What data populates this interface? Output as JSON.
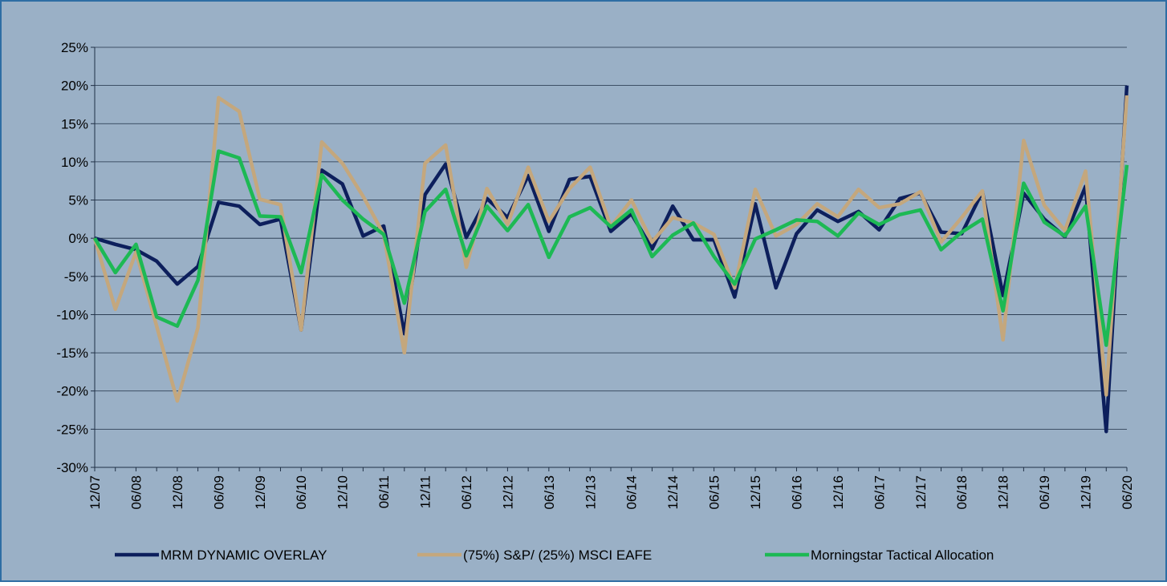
{
  "chart_data": {
    "type": "line",
    "categories": [
      "12/07",
      null,
      "06/08",
      null,
      "12/08",
      null,
      "06/09",
      null,
      "12/09",
      null,
      "06/10",
      null,
      "12/10",
      null,
      "06/11",
      null,
      "12/11",
      null,
      "06/12",
      null,
      "12/12",
      null,
      "06/13",
      null,
      "12/13",
      null,
      "06/14",
      null,
      "12/14",
      null,
      "06/15",
      null,
      "12/15",
      null,
      "06/16",
      null,
      "12/16",
      null,
      "06/17",
      null,
      "12/17",
      null,
      "06/18",
      null,
      "12/18",
      null,
      "06/19",
      null,
      "12/19",
      null,
      "06/20"
    ],
    "series": [
      {
        "name": "MRM DYNAMIC OVERLAY",
        "color": "#0d1f5c",
        "values": [
          0,
          -0.8,
          -1.5,
          -3,
          -6,
          -3.7,
          4.7,
          4.2,
          1.8,
          2.5,
          -12,
          8.9,
          7.1,
          0.3,
          1.6,
          -12.5,
          5.7,
          9.7,
          0.1,
          5.2,
          2.7,
          8.2,
          0.9,
          7.7,
          8.1,
          0.9,
          3.2,
          -1.4,
          4.2,
          -0.2,
          -0.2,
          -7.7,
          4.5,
          -6.5,
          0.6,
          3.7,
          2.2,
          3.5,
          1.1,
          5.2,
          5.9,
          0.8,
          0.6,
          6.1,
          -7.5,
          5.9,
          2.5,
          0.2,
          6.8,
          -25.3,
          20
        ]
      },
      {
        "name": "(75%) S&P/ (25%) MSCI EAFE",
        "color": "#c4a77d",
        "values": [
          0,
          -9.3,
          -1.8,
          -11.5,
          -21.3,
          -11.7,
          18.4,
          16.6,
          5.1,
          4.4,
          -12,
          12.6,
          9.8,
          5.5,
          0.5,
          -15,
          9.8,
          12.2,
          -3.8,
          6.5,
          1.8,
          9.3,
          2.2,
          6.5,
          9.3,
          1.5,
          5,
          -0.5,
          2.7,
          2,
          0.5,
          -6.5,
          6.4,
          0.3,
          1.8,
          4.5,
          2.8,
          6.4,
          4,
          4.5,
          6.1,
          -0.5,
          2.7,
          6.2,
          -13.3,
          12.8,
          4.3,
          1,
          8.8,
          -20.5,
          18.7
        ]
      },
      {
        "name": "Morningstar Tactical Allocation",
        "color": "#1db954",
        "values": [
          0,
          -4.5,
          -0.8,
          -10.3,
          -11.5,
          -5.5,
          11.4,
          10.5,
          2.9,
          2.8,
          -4.5,
          8.3,
          5,
          2.5,
          0.5,
          -8.5,
          3.5,
          6.4,
          -2.3,
          4.2,
          1,
          4.4,
          -2.5,
          2.8,
          4,
          1.5,
          3.7,
          -2.4,
          0.4,
          2,
          -2.4,
          -6,
          -0.1,
          1.1,
          2.4,
          2.2,
          0.3,
          3.3,
          1.8,
          3.1,
          3.7,
          -1.5,
          0.8,
          2.5,
          -9.5,
          7.2,
          2.1,
          0.3,
          4.2,
          -14,
          9.6
        ]
      }
    ],
    "ylim": [
      -30,
      25
    ],
    "yticks": [
      {
        "value": -30,
        "label": "-30%"
      },
      {
        "value": -25,
        "label": "-25%"
      },
      {
        "value": -20,
        "label": "-20%"
      },
      {
        "value": -15,
        "label": "-15%"
      },
      {
        "value": -10,
        "label": "-10%"
      },
      {
        "value": -5,
        "label": "-5%"
      },
      {
        "value": 0,
        "label": "0%"
      },
      {
        "value": 5,
        "label": "5%"
      },
      {
        "value": 10,
        "label": "10%"
      },
      {
        "value": 15,
        "label": "15%"
      },
      {
        "value": 20,
        "label": "20%"
      },
      {
        "value": 25,
        "label": "25%"
      }
    ],
    "grid": true
  }
}
